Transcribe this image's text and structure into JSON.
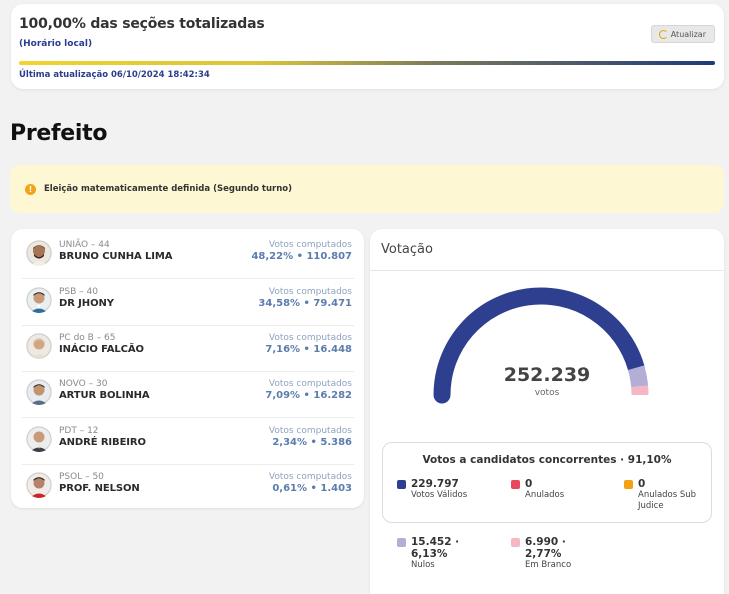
{
  "status": {
    "title": "100,00% das seções totalizadas",
    "subtitle": "(Horário local)",
    "refresh_label": "Atualizar",
    "progress": 1.0,
    "last_update": "Última atualização 06/10/2024 18:42:34"
  },
  "section_title": "Prefeito",
  "alert": {
    "text": "Eleição matematicamente definida (Segundo turno)",
    "icon": "info-icon"
  },
  "candidates": [
    {
      "party": "UNIÃO – 44",
      "name": "BRUNO CUNHA LIMA",
      "votes_label": "Votos computados",
      "votes": "48,22% • 110.807"
    },
    {
      "party": "PSB – 40",
      "name": "DR JHONY",
      "votes_label": "Votos computados",
      "votes": "34,58% • 79.471"
    },
    {
      "party": "PC do B – 65",
      "name": "INÁCIO FALCÃO",
      "votes_label": "Votos computados",
      "votes": "7,16% • 16.448"
    },
    {
      "party": "NOVO – 30",
      "name": "ARTUR BOLINHA",
      "votes_label": "Votos computados",
      "votes": "7,09% • 16.282"
    },
    {
      "party": "PDT – 12",
      "name": "ANDRÉ RIBEIRO",
      "votes_label": "Votos computados",
      "votes": "2,34% • 5.386"
    },
    {
      "party": "PSOL – 50",
      "name": "PROF. NELSON",
      "votes_label": "Votos computados",
      "votes": "0,61% • 1.403"
    }
  ],
  "votacao": {
    "title": "Votação",
    "total": "252.239",
    "total_label": "votos",
    "gauge": {
      "validos": 229797,
      "nulos": 15452,
      "brancos": 6990
    },
    "concorrentes_title": "Votos a candidatos concorrentes · 91,10%",
    "legend_top": [
      {
        "value": "229.797",
        "label": "Votos Válidos",
        "color": "#2f3f8f"
      },
      {
        "value": "0",
        "label": "Anulados",
        "color": "#e8485e"
      },
      {
        "value": "0",
        "label": "Anulados Sub Judice",
        "color": "#f2a313"
      }
    ],
    "legend_bottom": [
      {
        "value": "15.452 · 6,13%",
        "label": "Nulos",
        "color": "#b3aed6"
      },
      {
        "value": "6.990 · 2,77%",
        "label": "Em Branco",
        "color": "#f5b7c3"
      }
    ]
  }
}
